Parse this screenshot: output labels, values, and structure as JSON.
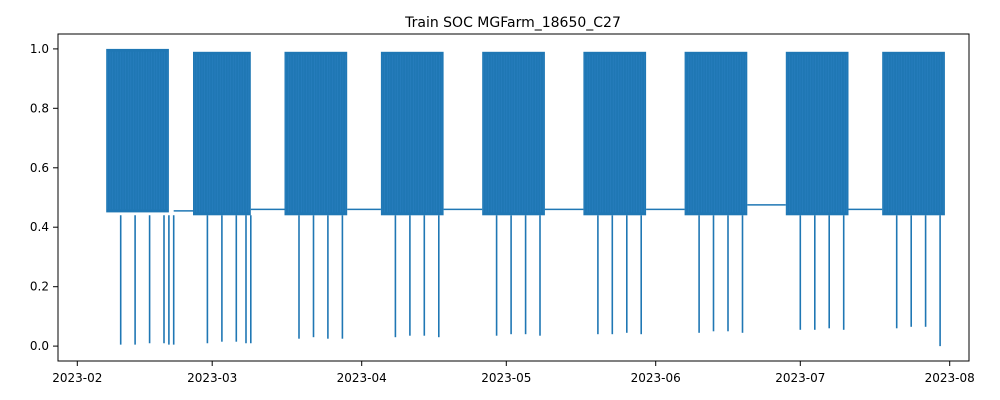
{
  "chart_data": {
    "type": "line",
    "title": "Train SOC MGFarm_18650_C27",
    "xlabel": "",
    "ylabel": "",
    "x_type": "date",
    "xlim": [
      "2023-01-28",
      "2023-08-05"
    ],
    "ylim": [
      -0.05,
      1.05
    ],
    "grid": false,
    "legend": "none",
    "x_ticks": [
      "2023-02-01",
      "2023-03-01",
      "2023-04-01",
      "2023-05-01",
      "2023-06-01",
      "2023-07-01",
      "2023-08-01"
    ],
    "x_tick_labels": [
      "2023-02",
      "2023-03",
      "2023-04",
      "2023-05",
      "2023-06",
      "2023-07",
      "2023-08"
    ],
    "y_ticks": [
      0.0,
      0.2,
      0.4,
      0.6,
      0.8,
      1.0
    ],
    "y_tick_labels": [
      "0.0",
      "0.2",
      "0.4",
      "0.6",
      "0.8",
      "1.0"
    ],
    "series_color": "#1f77b4",
    "series": [
      {
        "name": "",
        "blocks": [
          {
            "start": "2023-02-07",
            "end": "2023-02-20",
            "low": 0.45,
            "high": 1.0
          },
          {
            "start": "2023-02-25",
            "end": "2023-03-09",
            "low": 0.44,
            "high": 0.99
          },
          {
            "start": "2023-03-16",
            "end": "2023-03-29",
            "low": 0.44,
            "high": 0.99
          },
          {
            "start": "2023-04-05",
            "end": "2023-04-18",
            "low": 0.44,
            "high": 0.99
          },
          {
            "start": "2023-04-26",
            "end": "2023-05-09",
            "low": 0.44,
            "high": 0.99
          },
          {
            "start": "2023-05-17",
            "end": "2023-05-30",
            "low": 0.44,
            "high": 0.99
          },
          {
            "start": "2023-06-07",
            "end": "2023-06-20",
            "low": 0.44,
            "high": 0.99
          },
          {
            "start": "2023-06-28",
            "end": "2023-07-11",
            "low": 0.44,
            "high": 0.99
          },
          {
            "start": "2023-07-18",
            "end": "2023-07-31",
            "low": 0.44,
            "high": 0.99
          }
        ],
        "flat_segments": [
          {
            "start": "2023-02-21",
            "end": "2023-02-25",
            "value": 0.455
          },
          {
            "start": "2023-03-09",
            "end": "2023-03-16",
            "value": 0.46
          },
          {
            "start": "2023-03-29",
            "end": "2023-04-05",
            "value": 0.46
          },
          {
            "start": "2023-04-18",
            "end": "2023-04-26",
            "value": 0.46
          },
          {
            "start": "2023-05-09",
            "end": "2023-05-17",
            "value": 0.46
          },
          {
            "start": "2023-05-30",
            "end": "2023-06-07",
            "value": 0.46
          },
          {
            "start": "2023-06-20",
            "end": "2023-06-28",
            "value": 0.475
          },
          {
            "start": "2023-07-11",
            "end": "2023-07-18",
            "value": 0.46
          }
        ],
        "spikes": [
          {
            "date": "2023-02-10",
            "value": 0.005
          },
          {
            "date": "2023-02-13",
            "value": 0.005
          },
          {
            "date": "2023-02-16",
            "value": 0.01
          },
          {
            "date": "2023-02-19",
            "value": 0.01
          },
          {
            "date": "2023-02-20",
            "value": 0.005
          },
          {
            "date": "2023-02-21",
            "value": 0.005
          },
          {
            "date": "2023-02-28",
            "value": 0.01
          },
          {
            "date": "2023-03-03",
            "value": 0.015
          },
          {
            "date": "2023-03-06",
            "value": 0.015
          },
          {
            "date": "2023-03-08",
            "value": 0.01
          },
          {
            "date": "2023-03-09",
            "value": 0.01
          },
          {
            "date": "2023-03-19",
            "value": 0.025
          },
          {
            "date": "2023-03-22",
            "value": 0.03
          },
          {
            "date": "2023-03-25",
            "value": 0.025
          },
          {
            "date": "2023-03-28",
            "value": 0.025
          },
          {
            "date": "2023-04-08",
            "value": 0.03
          },
          {
            "date": "2023-04-11",
            "value": 0.035
          },
          {
            "date": "2023-04-14",
            "value": 0.035
          },
          {
            "date": "2023-04-17",
            "value": 0.03
          },
          {
            "date": "2023-04-29",
            "value": 0.035
          },
          {
            "date": "2023-05-02",
            "value": 0.04
          },
          {
            "date": "2023-05-05",
            "value": 0.04
          },
          {
            "date": "2023-05-08",
            "value": 0.035
          },
          {
            "date": "2023-05-20",
            "value": 0.04
          },
          {
            "date": "2023-05-23",
            "value": 0.04
          },
          {
            "date": "2023-05-26",
            "value": 0.045
          },
          {
            "date": "2023-05-29",
            "value": 0.04
          },
          {
            "date": "2023-06-10",
            "value": 0.045
          },
          {
            "date": "2023-06-13",
            "value": 0.05
          },
          {
            "date": "2023-06-16",
            "value": 0.05
          },
          {
            "date": "2023-06-19",
            "value": 0.045
          },
          {
            "date": "2023-07-01",
            "value": 0.055
          },
          {
            "date": "2023-07-04",
            "value": 0.055
          },
          {
            "date": "2023-07-07",
            "value": 0.06
          },
          {
            "date": "2023-07-10",
            "value": 0.055
          },
          {
            "date": "2023-07-21",
            "value": 0.06
          },
          {
            "date": "2023-07-24",
            "value": 0.065
          },
          {
            "date": "2023-07-27",
            "value": 0.065
          },
          {
            "date": "2023-07-30",
            "value": 0.0
          }
        ]
      }
    ]
  }
}
